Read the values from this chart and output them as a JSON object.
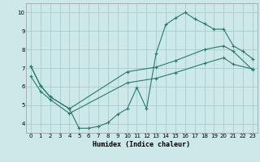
{
  "xlabel": "Humidex (Indice chaleur)",
  "bg_color": "#cce8e8",
  "grid_color": "#aacccc",
  "line_color": "#2a7a6a",
  "xlim": [
    -0.5,
    23.5
  ],
  "ylim": [
    3.5,
    10.5
  ],
  "xticks": [
    0,
    1,
    2,
    3,
    4,
    5,
    6,
    7,
    8,
    9,
    10,
    11,
    12,
    13,
    14,
    15,
    16,
    17,
    18,
    19,
    20,
    21,
    22,
    23
  ],
  "yticks": [
    4,
    5,
    6,
    7,
    8,
    9,
    10
  ],
  "line1_x": [
    0,
    1,
    2,
    4,
    5,
    6,
    7,
    8,
    9,
    10,
    11,
    12,
    13,
    14,
    15,
    16,
    17,
    18,
    19,
    20,
    21,
    22,
    23
  ],
  "line1_y": [
    7.1,
    6.05,
    5.45,
    4.8,
    3.75,
    3.75,
    3.85,
    4.05,
    4.5,
    4.8,
    5.95,
    4.8,
    7.8,
    9.35,
    9.7,
    10.0,
    9.65,
    9.4,
    9.1,
    9.1,
    8.2,
    7.9,
    7.5
  ],
  "line2_x": [
    0,
    1,
    2,
    4,
    10,
    13,
    15,
    18,
    20,
    21,
    23
  ],
  "line2_y": [
    7.1,
    6.05,
    5.45,
    4.8,
    6.8,
    7.05,
    7.4,
    8.0,
    8.2,
    7.9,
    6.9
  ],
  "line3_x": [
    0,
    1,
    2,
    4,
    10,
    13,
    15,
    18,
    20,
    21,
    23
  ],
  "line3_y": [
    6.55,
    5.75,
    5.3,
    4.55,
    6.2,
    6.45,
    6.75,
    7.25,
    7.55,
    7.2,
    6.95
  ]
}
